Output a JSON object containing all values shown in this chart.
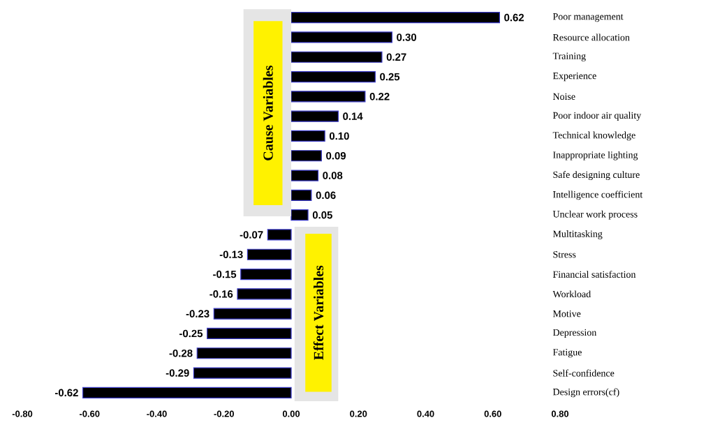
{
  "chart_data": {
    "type": "bar",
    "orientation": "horizontal",
    "color": "#000000",
    "categories": [
      "Poor management",
      "Resource allocation",
      "Training",
      "Experience",
      "Noise",
      "Poor indoor air quality",
      "Technical knowledge",
      "Inappropriate lighting",
      "Safe designing culture",
      "Intelligence coefficient",
      "Unclear work process",
      "Multitasking",
      "Stress",
      "Financial satisfaction",
      "Workload",
      "Motive",
      "Depression",
      "Fatigue",
      "Self-confidence",
      "Design errors(cf)"
    ],
    "values": [
      0.62,
      0.3,
      0.27,
      0.25,
      0.22,
      0.14,
      0.1,
      0.09,
      0.08,
      0.06,
      0.05,
      -0.07,
      -0.13,
      -0.15,
      -0.16,
      -0.23,
      -0.25,
      -0.28,
      -0.29,
      -0.62
    ],
    "value_labels": [
      "0.62",
      "0.30",
      "0.27",
      "0.25",
      "0.22",
      "0.14",
      "0.10",
      "0.09",
      "0.08",
      "0.06",
      "0.05",
      "-0.07",
      "-0.13",
      "-0.15",
      "-0.16",
      "-0.23",
      "-0.25",
      "-0.28",
      "-0.29",
      "-0.62"
    ],
    "xlim": [
      -0.8,
      0.8
    ],
    "xticks": [
      {
        "value": -0.8,
        "label": "-0.80"
      },
      {
        "value": -0.6,
        "label": "-0.60"
      },
      {
        "value": -0.4,
        "label": "-0.40"
      },
      {
        "value": -0.2,
        "label": "-0.20"
      },
      {
        "value": 0,
        "label": "0.00"
      },
      {
        "value": 0.2,
        "label": "0.20"
      },
      {
        "value": 0.4,
        "label": "0.40"
      },
      {
        "value": 0.6,
        "label": "0.60"
      },
      {
        "value": 0.8,
        "label": "0.80"
      }
    ],
    "annotations": [
      "Cause Variables",
      "Effect Variables"
    ],
    "grid": false
  }
}
